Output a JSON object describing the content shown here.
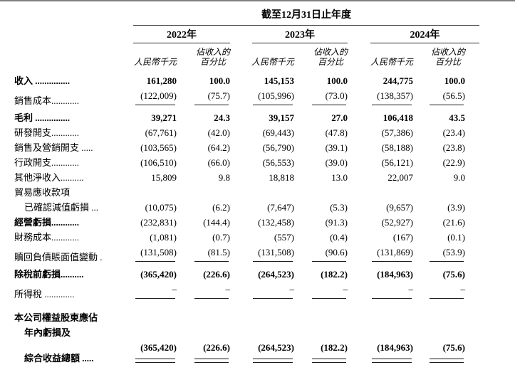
{
  "colors": {
    "top_bar": "#7f7f7f",
    "rule": "#1a1a1a",
    "text": "#000000"
  },
  "header": {
    "period_title": "截至12月31日止年度",
    "years": [
      "2022年",
      "2023年",
      "2024年"
    ],
    "amount_unit": "人民幣千元",
    "pct_line1": "佔收入的",
    "pct_line2": "百分比"
  },
  "table": {
    "rows": [
      {
        "label": "收入 ...............",
        "lbold": true,
        "vbold": true,
        "values": [
          "161,280",
          "100.0",
          "145,153",
          "100.0",
          "244,775",
          "100.0"
        ]
      },
      {
        "label": "銷售成本............",
        "rule": "single",
        "values": [
          "(122,009)",
          "(75.7)",
          "(105,996)",
          "(73.0)",
          "(138,357)",
          "(56.5)"
        ]
      },
      {
        "label": "毛利 ...............",
        "lbold": true,
        "vbold": true,
        "gap": 3,
        "values": [
          "39,271",
          "24.3",
          "39,157",
          "27.0",
          "106,418",
          "43.5"
        ]
      },
      {
        "label": "研發開支............",
        "values": [
          "(67,761)",
          "(42.0)",
          "(69,443)",
          "(47.8)",
          "(57,386)",
          "(23.4)"
        ]
      },
      {
        "label": "銷售及營銷開支 .....",
        "values": [
          "(103,565)",
          "(64.2)",
          "(56,790)",
          "(39.1)",
          "(58,188)",
          "(23.8)"
        ]
      },
      {
        "label": "行政開支............",
        "values": [
          "(106,510)",
          "(66.0)",
          "(56,553)",
          "(39.0)",
          "(56,121)",
          "(22.9)"
        ]
      },
      {
        "label": "其他淨收入..........",
        "values": [
          "15,809",
          "9.8",
          "18,818",
          "13.0",
          "22,007",
          "9.0"
        ]
      },
      {
        "label": "貿易應收款項",
        "values": null
      },
      {
        "label": "已確認減值虧損 ...",
        "indent": true,
        "values": [
          "(10,075)",
          "(6.2)",
          "(7,647)",
          "(5.3)",
          "(9,657)",
          "(3.9)"
        ]
      },
      {
        "label": "經營虧損............",
        "lbold": true,
        "values": [
          "(232,831)",
          "(144.4)",
          "(132,458)",
          "(91.3)",
          "(52,927)",
          "(21.6)"
        ]
      },
      {
        "label": "財務成本............",
        "values": [
          "(1,081)",
          "(0.7)",
          "(557)",
          "(0.4)",
          "(167)",
          "(0.1)"
        ]
      },
      {
        "label": "贖回負債賬面值變動 .",
        "rule": "single",
        "values": [
          "(131,508)",
          "(81.5)",
          "(131,508)",
          "(90.6)",
          "(131,869)",
          "(53.9)"
        ]
      },
      {
        "label": "除稅前虧損..........",
        "lbold": true,
        "vbold": true,
        "gap": 3,
        "values": [
          "(365,420)",
          "(226.6)",
          "(264,523)",
          "(182.2)",
          "(184,963)",
          "(75.6)"
        ]
      },
      {
        "label": "所得稅 .............",
        "rule": "single",
        "values": [
          "–",
          "–",
          "–",
          "–",
          "–",
          "–"
        ]
      },
      {
        "label": "本公司權益股東應佔",
        "lbold": true,
        "gap": 12,
        "values": null
      },
      {
        "label": "年內虧損及",
        "lbold": true,
        "indent": true,
        "values": null
      },
      {
        "label": "綜合收益總額 .....",
        "lbold": true,
        "vbold": true,
        "indent": true,
        "rule": "double",
        "values": [
          "(365,420)",
          "(226.6)",
          "(264,523)",
          "(182.2)",
          "(184,963)",
          "(75.6)"
        ]
      }
    ]
  }
}
